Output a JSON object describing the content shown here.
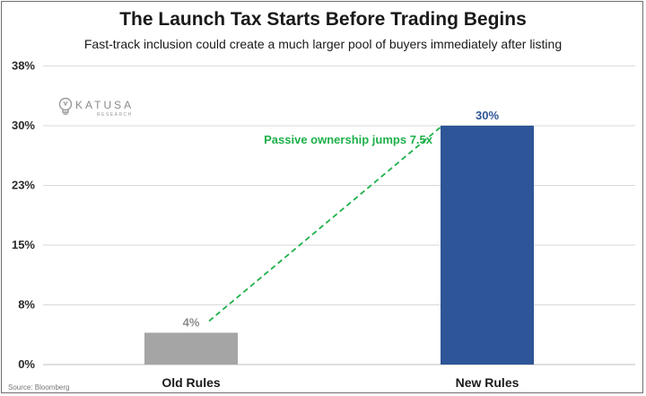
{
  "chart_data": {
    "type": "bar",
    "title": "The Launch Tax Starts Before Trading Begins",
    "subtitle": "Fast-track inclusion could create a much larger pool of buyers immediately after listing",
    "categories": [
      "Old Rules",
      "New Rules"
    ],
    "values": [
      4,
      30
    ],
    "value_labels": [
      "4%",
      "30%"
    ],
    "bar_colors": [
      "#a5a5a5",
      "#2e5597"
    ],
    "label_colors": [
      "#8c8c8c",
      "#2e5597"
    ],
    "ylim": [
      0,
      38
    ],
    "yticks": [
      0,
      7.5,
      15,
      22.5,
      30,
      37.5
    ],
    "ytick_labels": [
      "0%",
      "8%",
      "15%",
      "23%",
      "30%",
      "38%"
    ],
    "grid": true,
    "annotation": {
      "text": "Passive ownership jumps 7.5x",
      "color": "#1fb04b"
    },
    "source": "Source: Bloomberg"
  },
  "logo": {
    "name": "KATUSA",
    "sub": "RESEARCH"
  }
}
